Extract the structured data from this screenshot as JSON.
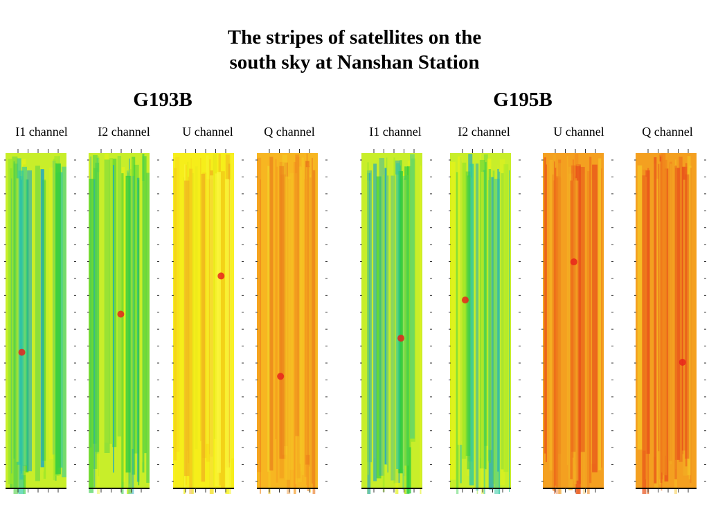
{
  "title_line1": "The stripes of satellites on the",
  "title_line2": "south sky at Nanshan Station",
  "groups": [
    {
      "name": "G193B",
      "channels": [
        "I1 channel",
        "I2 channel",
        "U channel",
        "Q channel"
      ]
    },
    {
      "name": "G195B",
      "channels": [
        "I1 channel",
        "I2 channel",
        "U channel",
        "Q channel"
      ]
    }
  ],
  "colors": {
    "green": "#2ecc40",
    "yellow": "#f2f20a",
    "orange": "#f5a623",
    "red": "#e8241c",
    "blue": "#1a3fb0"
  }
}
